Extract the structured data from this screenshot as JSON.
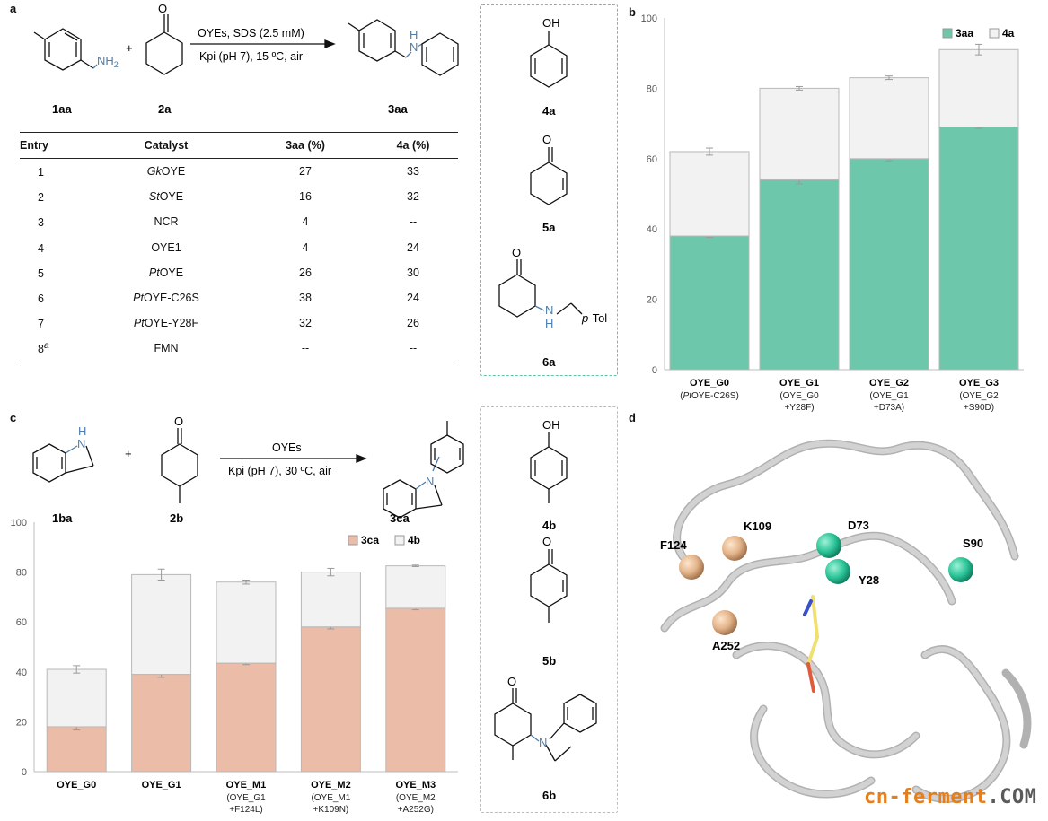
{
  "panels": {
    "a": "a",
    "b": "b",
    "c": "c",
    "d": "d"
  },
  "reaction_a": {
    "condition_top": "OYEs, SDS (2.5 mM)",
    "condition_bottom": "Kpi (pH 7), 15 ºC, air",
    "plus": "+",
    "sub1": "1aa",
    "sub2": "2a",
    "prod": "3aa",
    "nh2": "NH",
    "nh2_sub": "2",
    "nh": "N",
    "h": "H"
  },
  "table": {
    "headers": [
      "Entry",
      "Catalyst",
      "3aa (%)",
      "4a (%)"
    ],
    "rows": [
      {
        "entry": "1",
        "sup": "",
        "cat_i": "Gk",
        "cat": "OYE",
        "v3": "27",
        "v4": "33"
      },
      {
        "entry": "2",
        "sup": "",
        "cat_i": "St",
        "cat": "OYE",
        "v3": "16",
        "v4": "32"
      },
      {
        "entry": "3",
        "sup": "",
        "cat_i": "",
        "cat": "NCR",
        "v3": "4",
        "v4": "--"
      },
      {
        "entry": "4",
        "sup": "",
        "cat_i": "",
        "cat": "OYE1",
        "v3": "4",
        "v4": "24"
      },
      {
        "entry": "5",
        "sup": "",
        "cat_i": "Pt",
        "cat": "OYE",
        "v3": "26",
        "v4": "30"
      },
      {
        "entry": "6",
        "sup": "",
        "cat_i": "Pt",
        "cat": "OYE-C26S",
        "v3": "38",
        "v4": "24"
      },
      {
        "entry": "7",
        "sup": "",
        "cat_i": "Pt",
        "cat": "OYE-Y28F",
        "v3": "32",
        "v4": "26"
      },
      {
        "entry": "8",
        "sup": "a",
        "cat_i": "",
        "cat": "FMN",
        "v3": "--",
        "v4": "--"
      }
    ]
  },
  "side_a": {
    "l1": "4a",
    "l2": "5a",
    "l3": "6a",
    "oh": "OH",
    "o": "O",
    "nh": "N",
    "h": "H",
    "ptol": "p",
    "ptol2": "-Tol"
  },
  "side_c": {
    "l1": "4b",
    "l2": "5b",
    "l3": "6b",
    "oh": "OH",
    "o": "O",
    "n": "N"
  },
  "reaction_c": {
    "condition_top": "OYEs",
    "condition_bottom": "Kpi (pH 7), 30 ºC, air",
    "plus": "+",
    "sub1": "1ba",
    "sub2": "2b",
    "prod": "3ca",
    "o": "O",
    "n": "N",
    "nh": "N",
    "h": "H"
  },
  "chart_data": [
    {
      "type": "bar",
      "panel": "b",
      "stacked": true,
      "categories": [
        "OYE_G0",
        "OYE_G1",
        "OYE_G2",
        "OYE_G3"
      ],
      "category_sub1_i": [
        "Pt",
        "",
        "",
        ""
      ],
      "category_sub1": [
        "(PtOYE-C26S)",
        "(OYE_G0",
        "(OYE_G1",
        "(OYE_G2"
      ],
      "category_sub1_rest": [
        "OYE-C26S)",
        "(OYE_G0",
        "(OYE_G1",
        "(OYE_G2"
      ],
      "category_sub2": [
        "",
        "+Y28F)",
        "+D73A)",
        "+S90D)"
      ],
      "series": [
        {
          "name": "3aa",
          "values": [
            38,
            54,
            60,
            69
          ],
          "err": [
            0.4,
            1.2,
            0.6,
            0.4
          ]
        },
        {
          "name": "4a",
          "values": [
            24,
            26,
            23,
            22
          ],
          "err": [
            1.0,
            0.5,
            0.5,
            1.5
          ]
        }
      ],
      "ylim": [
        0,
        100
      ],
      "yticks": [
        "0",
        "20",
        "40",
        "60",
        "80",
        "100"
      ],
      "legend": "top-right",
      "colors": {
        "3aa": "#6dc7aa",
        "4a": "#f2f2f2"
      }
    },
    {
      "type": "bar",
      "panel": "c",
      "stacked": true,
      "categories": [
        "OYE_G0",
        "OYE_G1",
        "OYE_M1",
        "OYE_M2",
        "OYE_M3"
      ],
      "category_sub1": [
        "",
        "",
        "(OYE_G1",
        "(OYE_M1",
        "(OYE_M2"
      ],
      "category_sub2": [
        "",
        "",
        "+F124L)",
        "+K109N)",
        "+A252G)"
      ],
      "series": [
        {
          "name": "3ca",
          "values": [
            18,
            39,
            43.5,
            58,
            65.5
          ],
          "err": [
            1.3,
            1.2,
            0.6,
            0.8,
            0.6
          ]
        },
        {
          "name": "4b",
          "values": [
            23,
            40,
            32.5,
            22,
            17
          ],
          "err": [
            1.5,
            2.2,
            0.8,
            1.5,
            0.3
          ]
        }
      ],
      "ylim": [
        0,
        100
      ],
      "yticks": [
        "0",
        "20",
        "40",
        "60",
        "80",
        "100"
      ],
      "legend": "top-right",
      "colors": {
        "3ca": "#ebbca7",
        "4b": "#f2f2f2"
      }
    }
  ],
  "structure": {
    "residues": [
      {
        "label": "F124",
        "kind": "c"
      },
      {
        "label": "K109",
        "kind": "c"
      },
      {
        "label": "A252",
        "kind": "c"
      },
      {
        "label": "D73",
        "kind": "b"
      },
      {
        "label": "Y28",
        "kind": "b"
      },
      {
        "label": "S90",
        "kind": "b"
      }
    ],
    "colors": {
      "b": "#2fc79b",
      "c": "#e3b48a"
    }
  },
  "watermark": {
    "main": "cn-ferment",
    "suffix": ".COM"
  }
}
